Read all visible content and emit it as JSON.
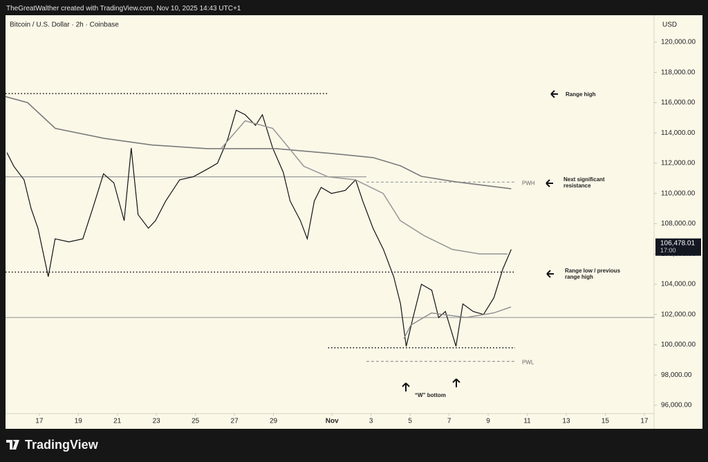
{
  "header": {
    "credit": "TheGreatWalther created with TradingView.com, Nov 10, 2025 14:43 UTC+1",
    "logo": "TradingView"
  },
  "chart_data": {
    "type": "line",
    "title": "Bitcoin / U.S. Dollar · 2h · Coinbase",
    "currency": "USD",
    "xlim": [
      15.27,
      48.5
    ],
    "xticks": [
      17,
      19,
      21,
      23,
      25,
      27,
      29,
      {
        "value": 32,
        "label": "Nov"
      },
      {
        "value": 34,
        "label": "3"
      },
      {
        "value": 36,
        "label": "5"
      },
      {
        "value": 38,
        "label": "7"
      },
      {
        "value": 40,
        "label": "9"
      },
      {
        "value": 42,
        "label": "11"
      },
      {
        "value": 44,
        "label": "13"
      },
      {
        "value": 46,
        "label": "15"
      },
      {
        "value": 48,
        "label": "17"
      }
    ],
    "ylim": [
      95450,
      121780
    ],
    "yticks": [
      {
        "value": 96000,
        "label": "96,000.00"
      },
      {
        "value": 98000,
        "label": "98,000.00"
      },
      {
        "value": 100000,
        "label": "100,000.00"
      },
      {
        "value": 102000,
        "label": "102,000.00"
      },
      {
        "value": 104000,
        "label": "104,000.00"
      },
      {
        "value": 106000,
        "label": "106,000.00"
      },
      {
        "value": 108000,
        "label": "108,000.00"
      },
      {
        "value": 110000,
        "label": "110,000.00"
      },
      {
        "value": 112000,
        "label": "112,000.00"
      },
      {
        "value": 114000,
        "label": "114,000.00"
      },
      {
        "value": 116000,
        "label": "116,000.00"
      },
      {
        "value": 118000,
        "label": "118,000.00"
      },
      {
        "value": 120000,
        "label": "120,000.00"
      }
    ],
    "grid": false,
    "series": [
      {
        "color": "#111111",
        "width": 1.2,
        "x": [
          15.34,
          15.69,
          16.22,
          16.58,
          16.93,
          17.46,
          17.81,
          18.52,
          19.23,
          19.76,
          20.29,
          20.82,
          21.35,
          21.71,
          22.06,
          22.59,
          22.95,
          23.48,
          24.19,
          24.89,
          25.6,
          26.13,
          26.66,
          27.09,
          27.55,
          28.08,
          28.43,
          28.96,
          29.5,
          29.85,
          30.38,
          30.73,
          31.09,
          31.44,
          31.97,
          32.68,
          33.21,
          33.57,
          34.1,
          34.63,
          35.16,
          35.51,
          35.8,
          36.15,
          36.58,
          37.11,
          37.46,
          37.81,
          38.35,
          38.7,
          39.23,
          39.76,
          40.29,
          40.75,
          41.18
        ],
        "values": [
          112700,
          111800,
          110900,
          109000,
          107700,
          104500,
          107000,
          106800,
          107000,
          109100,
          111300,
          110700,
          108200,
          113000,
          108600,
          107700,
          108200,
          109500,
          110900,
          111100,
          111600,
          112000,
          113600,
          115500,
          115200,
          114500,
          115200,
          113000,
          111400,
          109500,
          108200,
          107000,
          109500,
          110400,
          110000,
          110200,
          110900,
          109500,
          107700,
          106300,
          104500,
          102700,
          99900,
          101800,
          104000,
          103600,
          101800,
          102200,
          99900,
          102700,
          102200,
          102000,
          103100,
          105000,
          106300
        ]
      },
      {
        "color": "#7a7a7a",
        "width": 1.6,
        "x": [
          15.27,
          16.4,
          17.82,
          20.3,
          22.78,
          25.61,
          29.15,
          31.98,
          34.11,
          35.52,
          36.58,
          38.35,
          41.18
        ],
        "values": [
          116400,
          116000,
          114300,
          113650,
          113200,
          112960,
          112960,
          112640,
          112370,
          111820,
          111130,
          110770,
          110310
        ]
      },
      {
        "color": "#9a9a9a",
        "width": 1.6,
        "x": [
          26.31,
          27.55,
          28.96,
          29.67,
          30.55,
          31.79,
          33.2,
          34.62,
          35.5,
          36.74,
          38.16,
          39.57,
          40.99
        ],
        "values": [
          112960,
          114800,
          114300,
          113200,
          111800,
          111100,
          110900,
          110000,
          108200,
          107200,
          106300,
          106000,
          106000
        ]
      },
      {
        "color": "#8a8a8a",
        "width": 1.4,
        "x": [
          35.68,
          36.04,
          37.1,
          38.87,
          40.28,
          41.17
        ],
        "values": [
          100400,
          101300,
          102100,
          101800,
          102100,
          102500
        ]
      }
    ],
    "levels": [
      {
        "value": 116600,
        "style": "dotted",
        "x0": 15.27,
        "x1": 31.8
      },
      {
        "value": 111100,
        "style": "solid",
        "x0": 15.27,
        "x1": 33.76
      },
      {
        "value": 104800,
        "style": "dotted",
        "x0": 15.27,
        "x1": 41.38
      },
      {
        "value": 101800,
        "style": "solid",
        "x0": 15.27,
        "x1": 48.5
      },
      {
        "value": 99800,
        "style": "dotted",
        "x0": 31.8,
        "x1": 41.38
      },
      {
        "value": 110750,
        "style": "dashed",
        "x0": 33.76,
        "x1": 41.38,
        "label": "PWH"
      },
      {
        "value": 98900,
        "style": "dashed",
        "x0": 33.76,
        "x1": 41.38,
        "label": "PWL"
      }
    ],
    "annotations": [
      "Range high",
      "Next significant resistance",
      "Range low / previous range high",
      "“W” bottom"
    ],
    "last_price": {
      "value": 106478.01,
      "label": "106,478.01"
    },
    "last_time": "17:00"
  }
}
